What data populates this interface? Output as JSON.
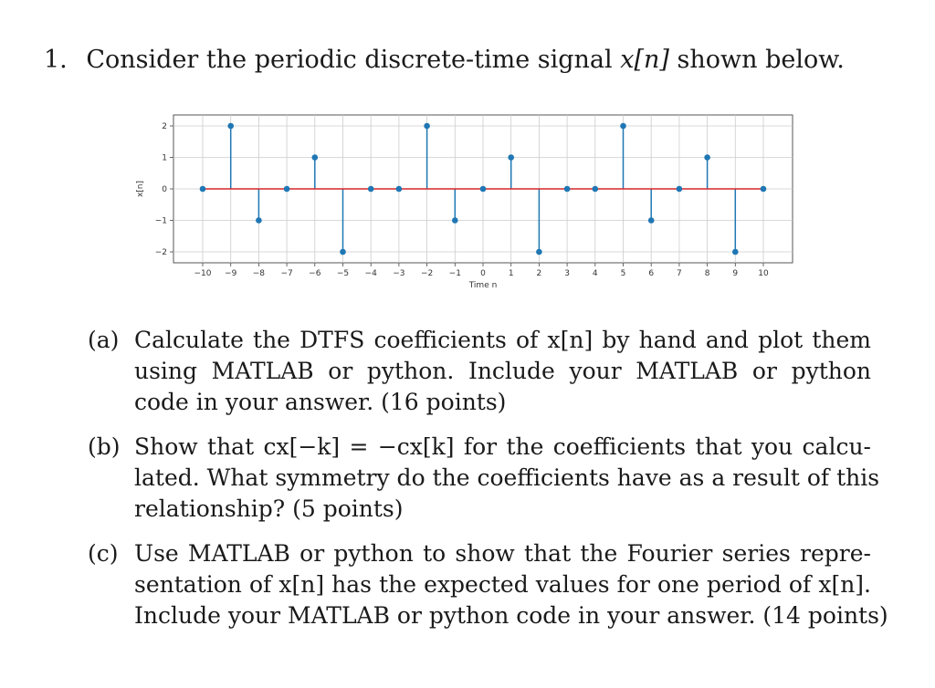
{
  "problem": {
    "number": "1.",
    "text_before": "Consider the periodic discrete-time signal",
    "signal_symbol": "x[n]",
    "text_after": "shown below."
  },
  "chart_data": {
    "type": "stem",
    "title": "",
    "xlabel": "Time n",
    "ylabel": "x[n]",
    "xlim": [
      -10,
      10
    ],
    "ylim": [
      -2,
      2
    ],
    "xticks": [
      "-10",
      "-9",
      "-8",
      "-7",
      "-6",
      "-5",
      "-4",
      "-3",
      "-2",
      "-1",
      "0",
      "1",
      "2",
      "3",
      "4",
      "5",
      "6",
      "7",
      "8",
      "9",
      "10"
    ],
    "yticks": [
      "-2",
      "-1",
      "0",
      "1",
      "2"
    ],
    "grid": true,
    "x": [
      -10,
      -9,
      -8,
      -7,
      -6,
      -5,
      -4,
      -3,
      -2,
      -1,
      0,
      1,
      2,
      3,
      4,
      5,
      6,
      7,
      8,
      9,
      10
    ],
    "values": [
      0,
      2,
      -1,
      0,
      1,
      -2,
      0,
      0,
      2,
      -1,
      0,
      1,
      -2,
      0,
      0,
      2,
      -1,
      0,
      1,
      -2,
      0
    ],
    "colors": {
      "stem": "#1f77b4",
      "baseline": "#d62728",
      "grid": "#cccccc"
    }
  },
  "parts": [
    {
      "label": "(a)",
      "lines": [
        "Calculate the DTFS coefficients of x[n] by hand and plot them",
        "using MATLAB or python. Include your MATLAB or python",
        "code in your answer. (16 points)"
      ]
    },
    {
      "label": "(b)",
      "lines": [
        "Show that cx[−k] = −cx[k] for the coefficients that you calcu-",
        "lated. What symmetry do the coefficients have as a result of this",
        "relationship? (5 points)"
      ]
    },
    {
      "label": "(c)",
      "lines": [
        "Use MATLAB or python to show that the Fourier series repre-",
        "sentation of x[n] has the expected values for one period of x[n].",
        "Include your MATLAB or python code in your answer. (14 points)"
      ]
    }
  ]
}
